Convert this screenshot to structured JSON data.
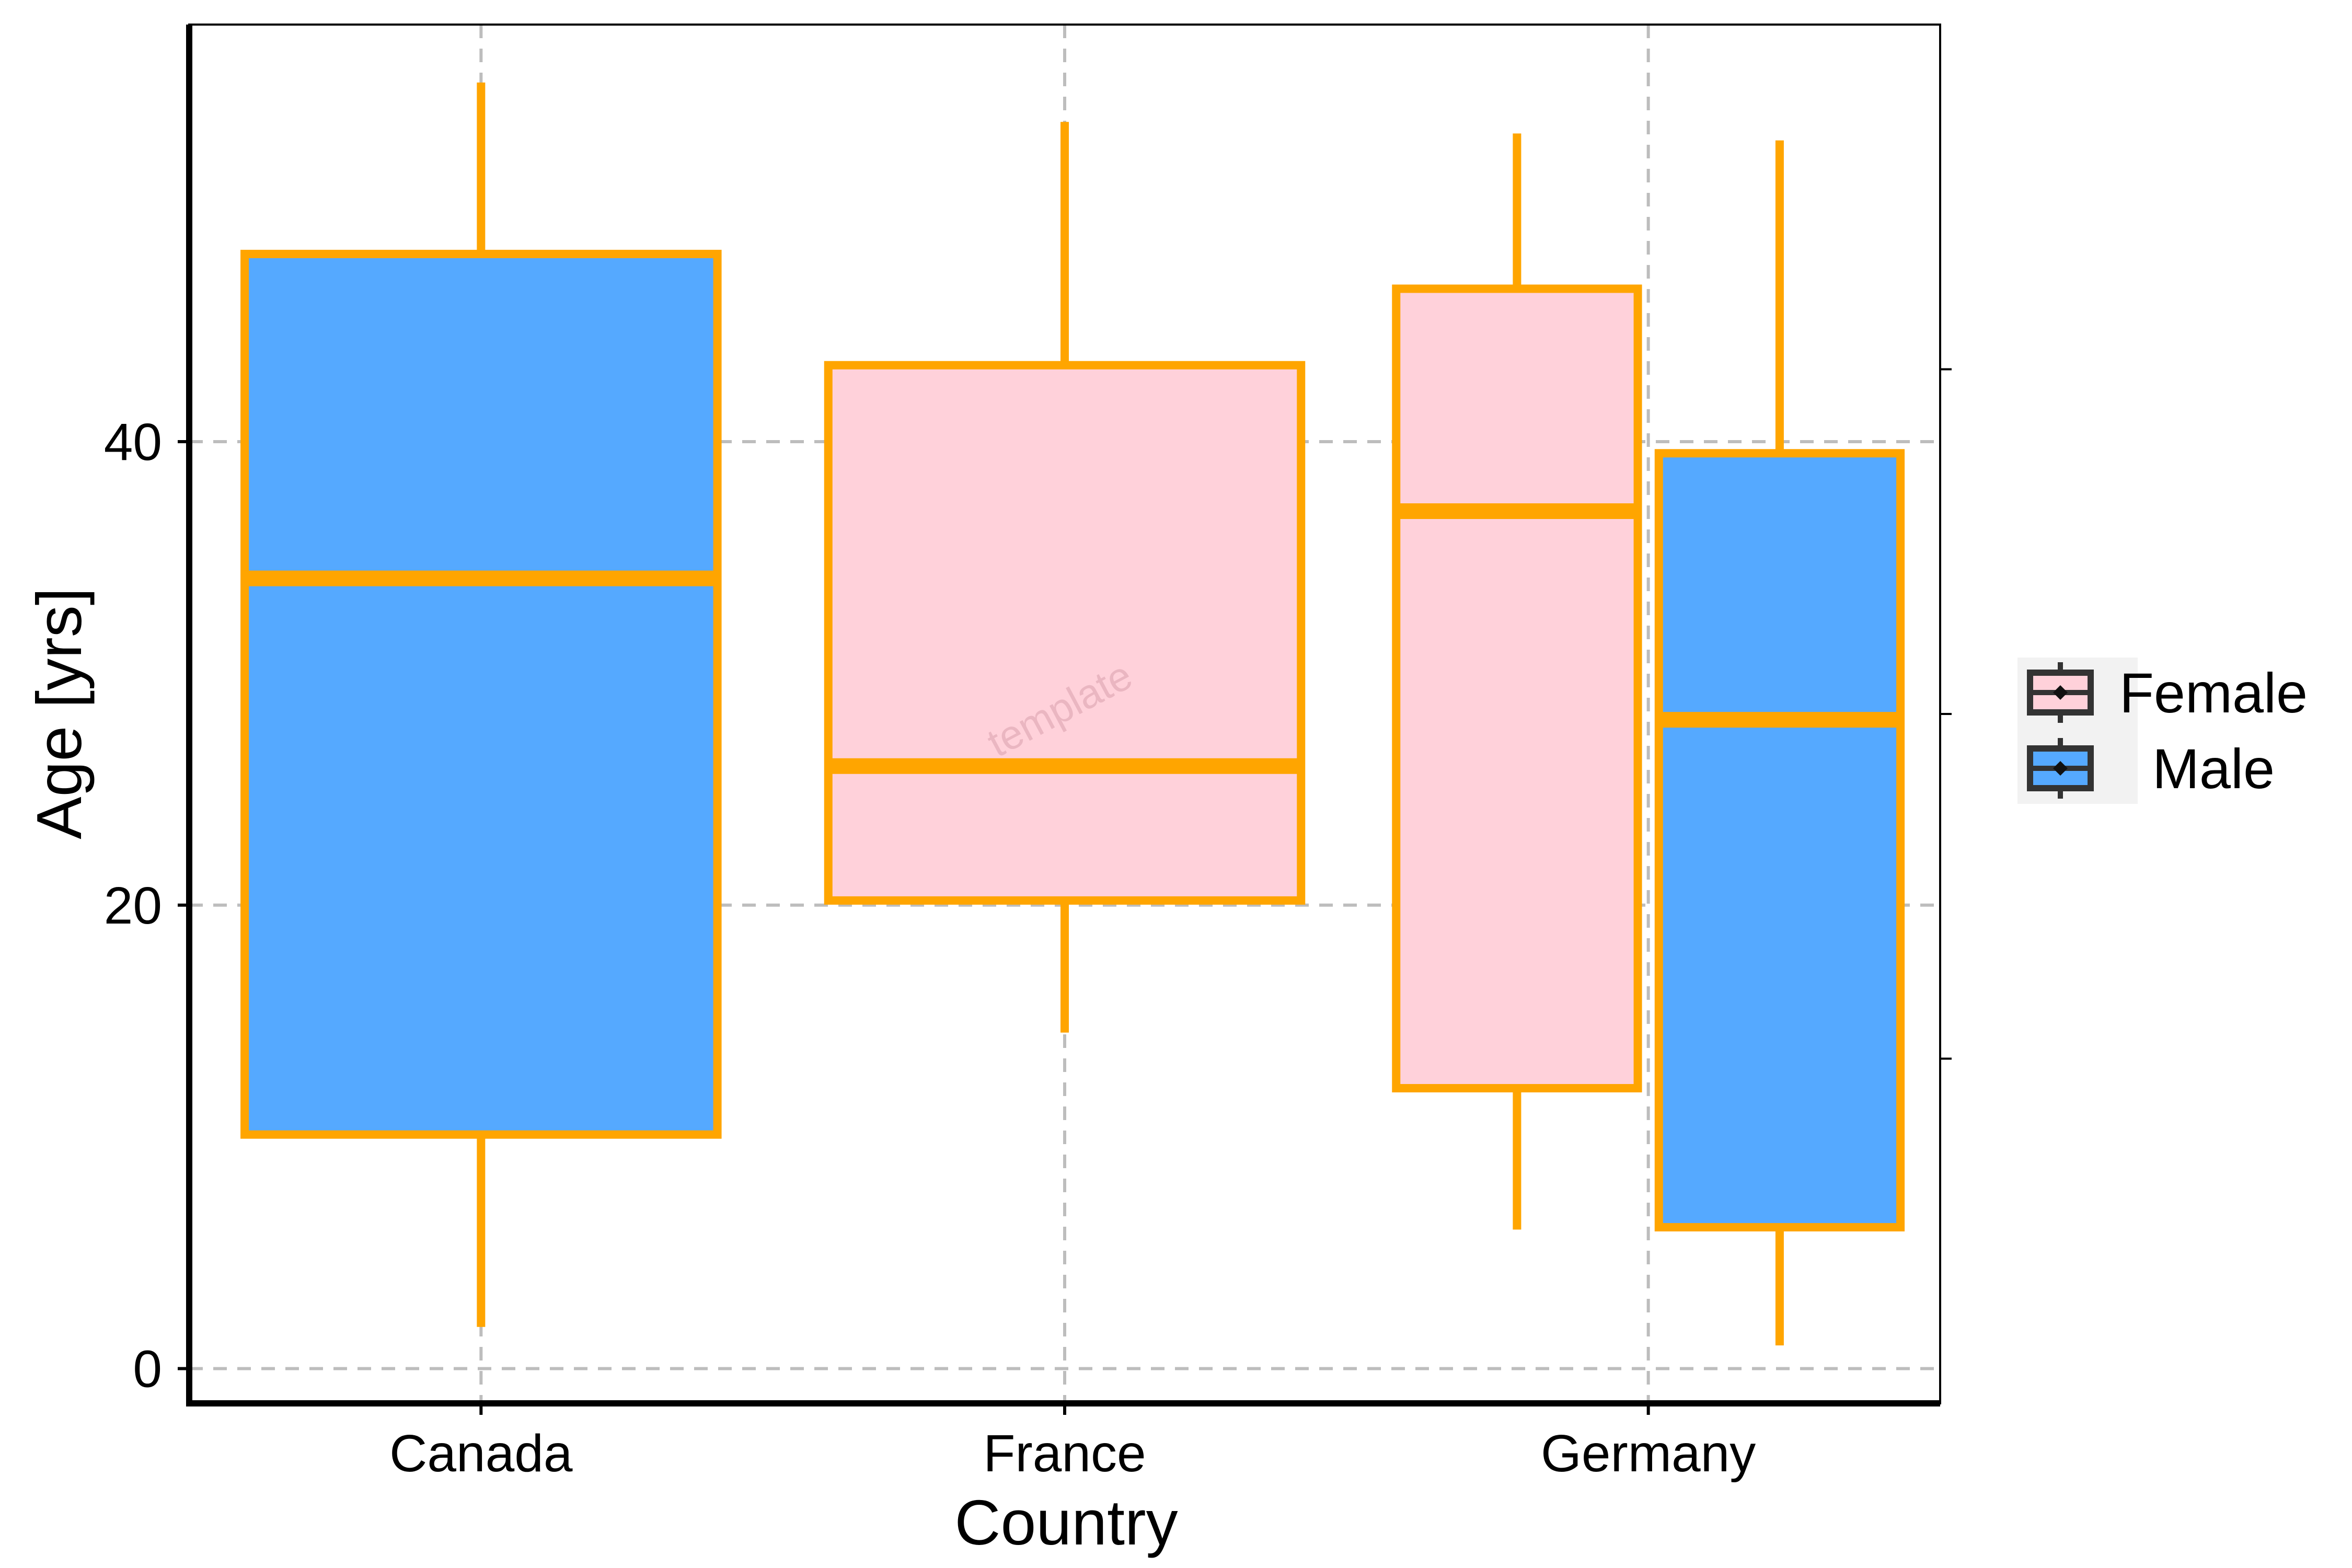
{
  "chart_data": {
    "type": "boxplot",
    "title": "",
    "xlabel": "Country",
    "ylabel": "Age [yrs]",
    "categories": [
      "Canada",
      "France",
      "Germany"
    ],
    "ylim": [
      -1.5,
      58
    ],
    "yticks": [
      0,
      20,
      40
    ],
    "grid": true,
    "legend_position": "right",
    "watermark": "template",
    "box_outline_color": "#FFA500",
    "series": [
      {
        "name": "Female",
        "color": "#FFD1DA",
        "boxes": [
          {
            "category": "France",
            "min": 14.5,
            "q1": 20.2,
            "median": 26,
            "q3": 43.3,
            "max": 53.8
          },
          {
            "category": "Germany",
            "min": 6,
            "q1": 12.1,
            "median": 37,
            "q3": 46.6,
            "max": 53.3
          }
        ]
      },
      {
        "name": "Male",
        "color": "#55A9FF",
        "boxes": [
          {
            "category": "Canada",
            "min": 1.8,
            "q1": 10.1,
            "median": 34.1,
            "q3": 48.1,
            "max": 55.5
          },
          {
            "category": "Germany",
            "min": 1,
            "q1": 6.1,
            "median": 28,
            "q3": 39.5,
            "max": 53
          }
        ]
      }
    ]
  }
}
